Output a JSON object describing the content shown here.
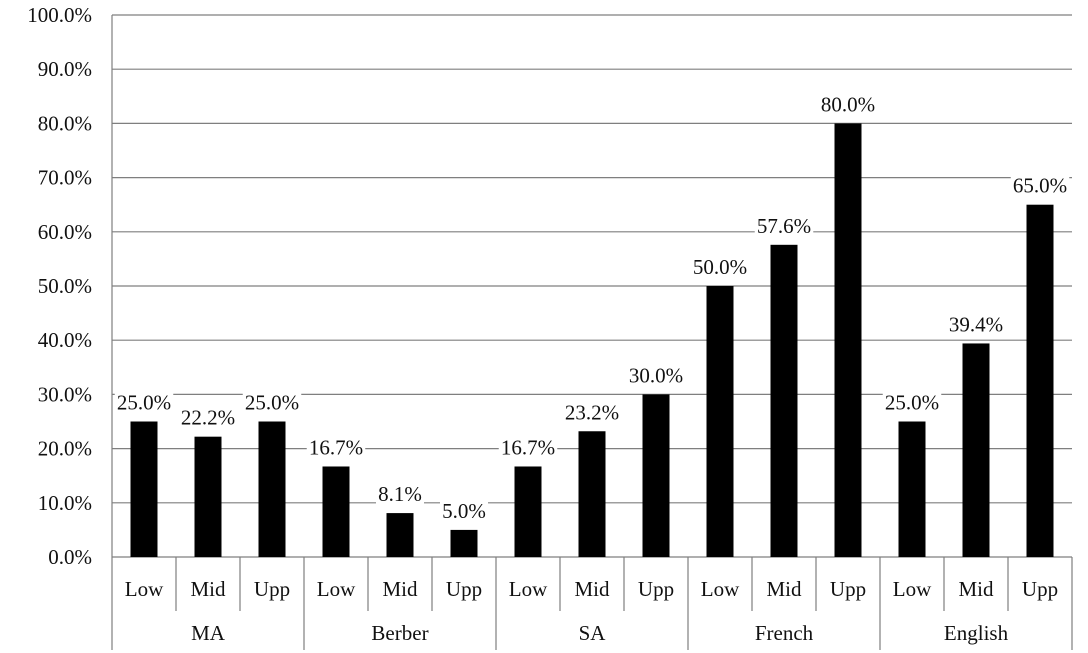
{
  "colors": {
    "bar": "#000000",
    "grid": "#7f7f7f",
    "background": "#ffffff",
    "text": "#111111"
  },
  "chart_data": {
    "type": "bar",
    "title": "",
    "xlabel": "",
    "ylabel": "",
    "ylim": [
      0,
      100
    ],
    "y_ticks": [
      "0.0%",
      "10.0%",
      "20.0%",
      "30.0%",
      "40.0%",
      "50.0%",
      "60.0%",
      "70.0%",
      "80.0%",
      "90.0%",
      "100.0%"
    ],
    "grid": true,
    "legend": "none",
    "groups": [
      "MA",
      "Berber",
      "SA",
      "French",
      "English"
    ],
    "subcategories": [
      "Low",
      "Mid",
      "Upp"
    ],
    "values": [
      [
        25.0,
        22.2,
        25.0
      ],
      [
        16.7,
        8.1,
        5.0
      ],
      [
        16.7,
        23.2,
        30.0
      ],
      [
        50.0,
        57.6,
        80.0
      ],
      [
        25.0,
        39.4,
        65.0
      ]
    ],
    "data_labels": [
      [
        "25.0%",
        "22.2%",
        "25.0%"
      ],
      [
        "16.7%",
        "8.1%",
        "5.0%"
      ],
      [
        "16.7%",
        "23.2%",
        "30.0%"
      ],
      [
        "50.0%",
        "57.6%",
        "80.0%"
      ],
      [
        "25.0%",
        "39.4%",
        "65.0%"
      ]
    ]
  }
}
